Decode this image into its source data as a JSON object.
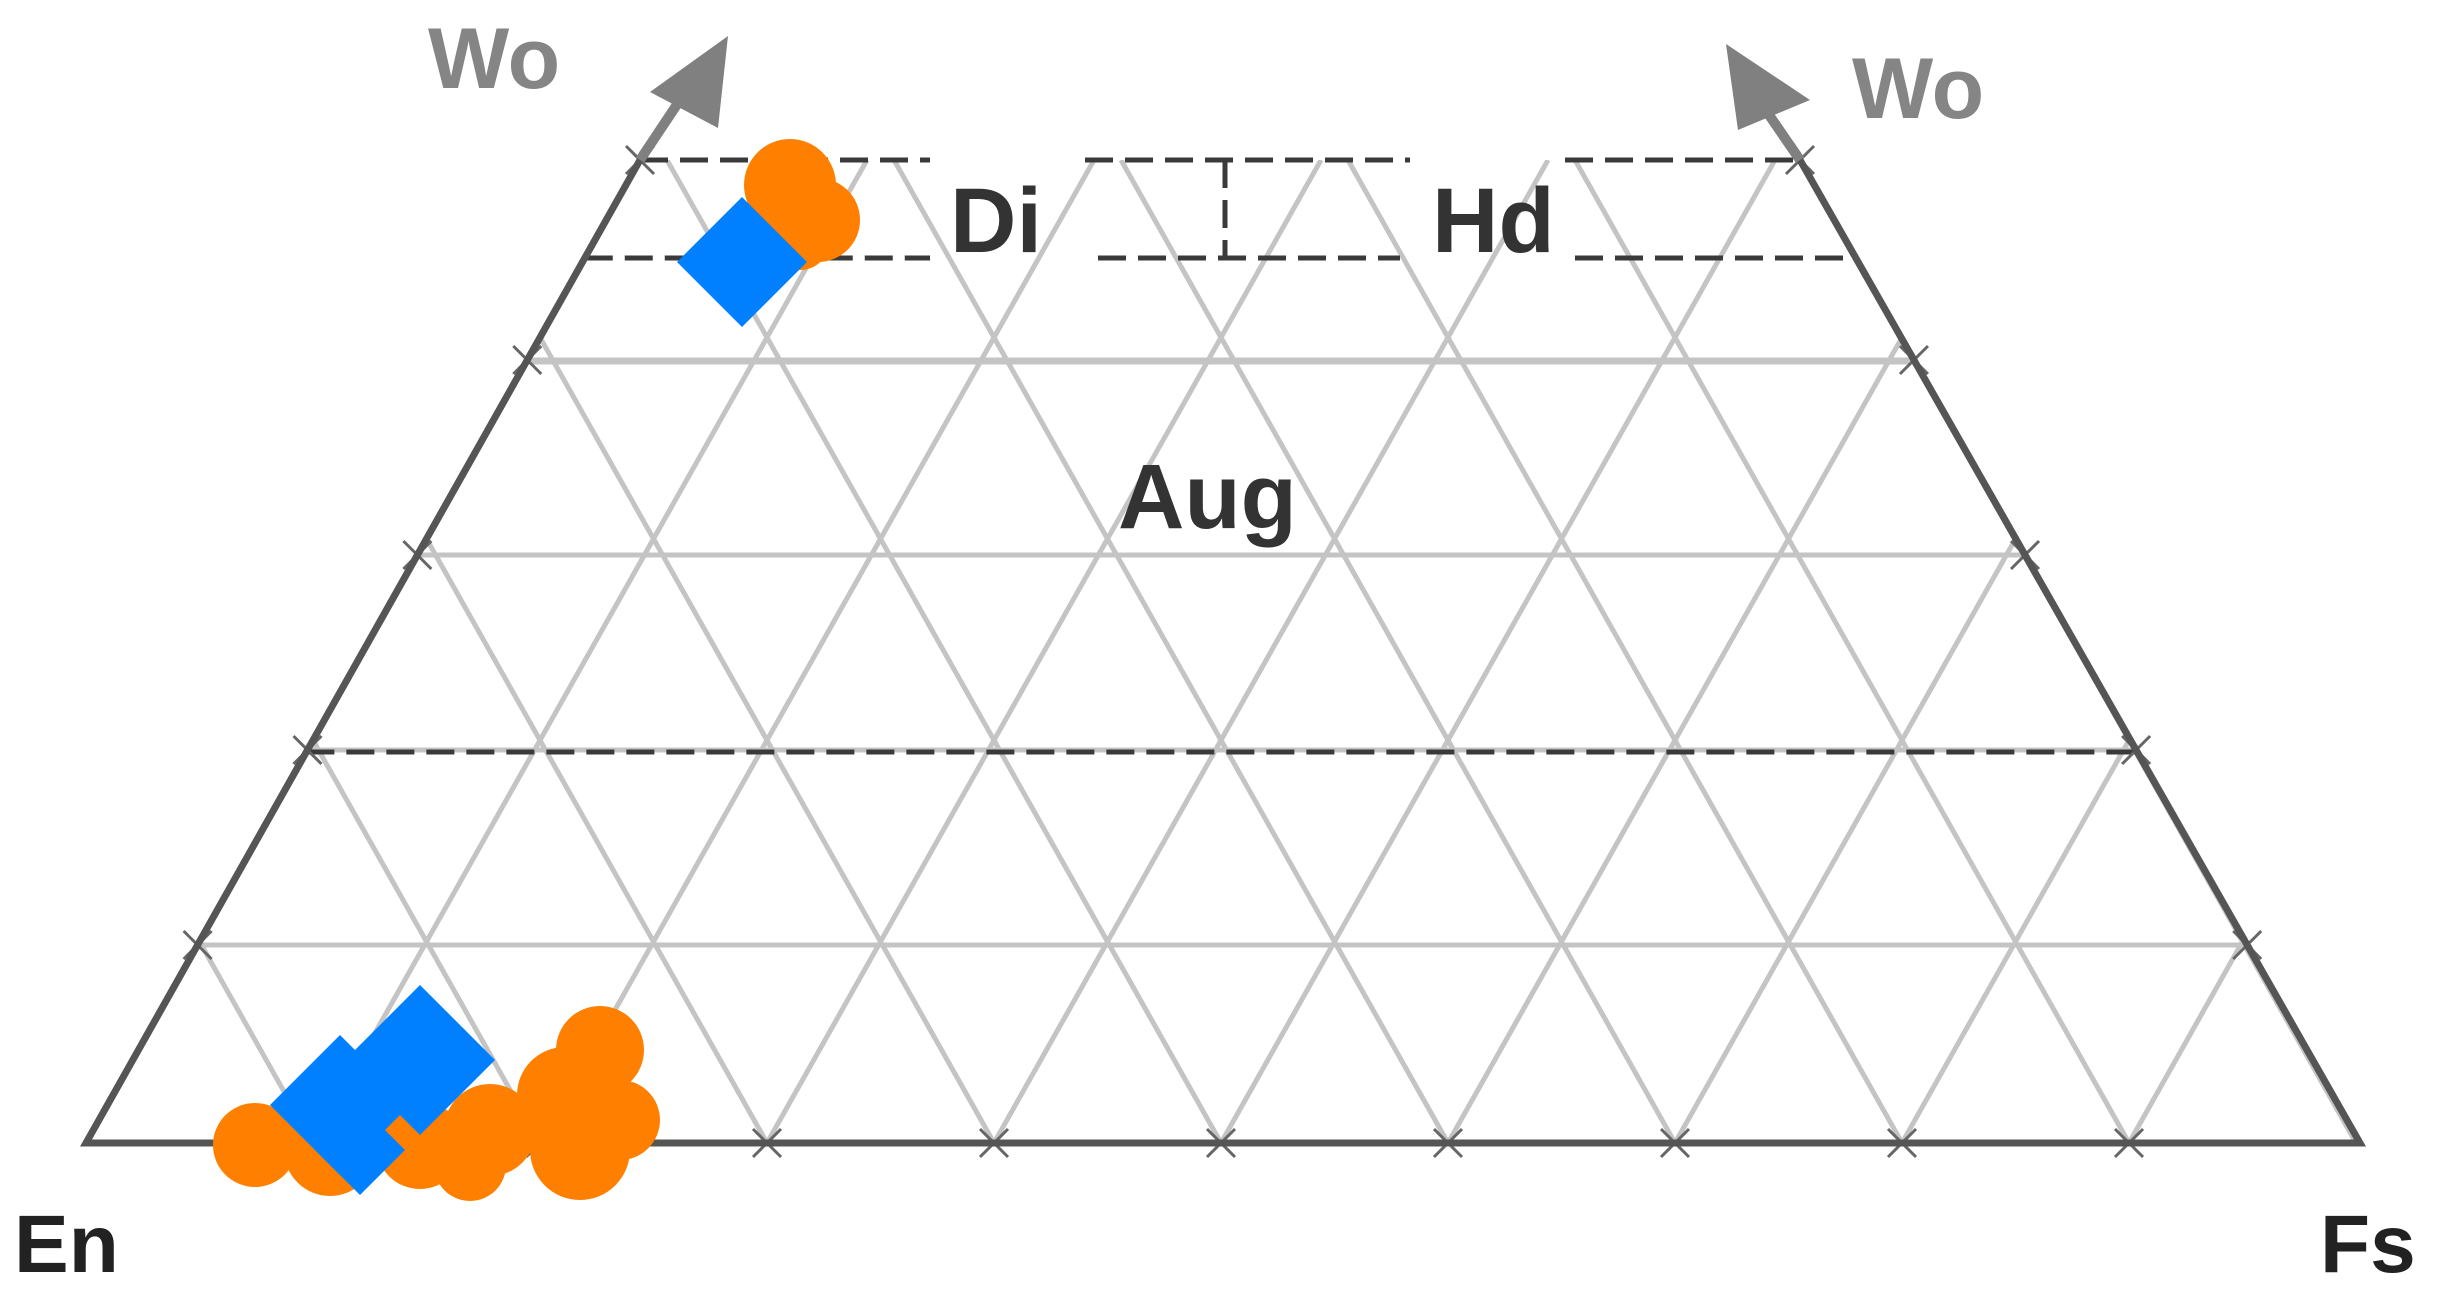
{
  "labels": {
    "apex_left": "Wo",
    "apex_right": "Wo",
    "corner_left": "En",
    "corner_right": "Fs",
    "field_diopside": "Di",
    "field_hedenbergite": "Hd",
    "field_augite": "Aug"
  },
  "colors": {
    "outline": "#555555",
    "arrow": "#808080",
    "grid": "#c4c4c4",
    "boundary_dashed": "#3a3a3a",
    "label_dark": "#333333",
    "label_gray": "#858585",
    "marker_orange": "#ff8000",
    "marker_blue": "#0080ff"
  },
  "icons": {
    "wo_arrow_left": "arrow-up-right",
    "wo_arrow_right": "arrow-up-left",
    "sample_marker_orange": "circle",
    "sample_marker_blue": "diamond"
  }
}
